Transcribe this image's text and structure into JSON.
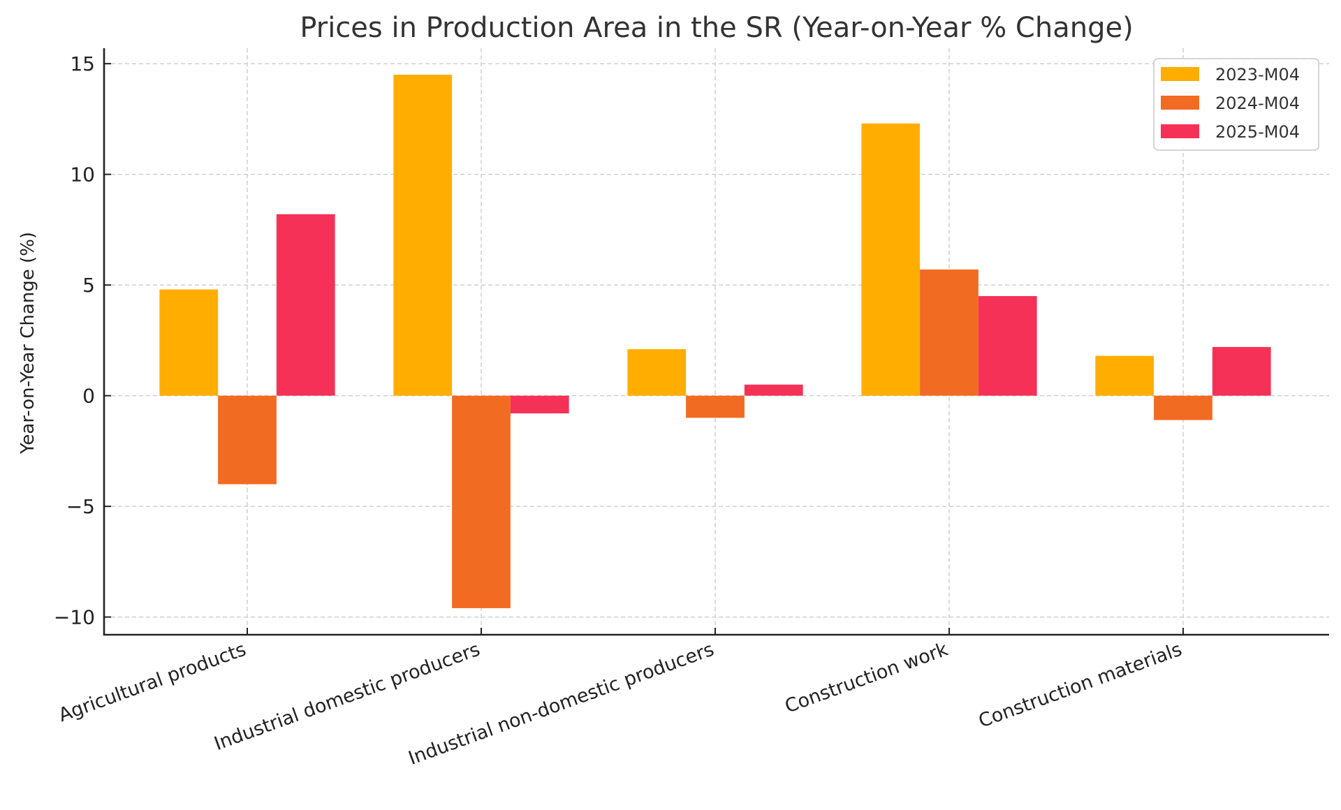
{
  "chart_data": {
    "type": "bar",
    "title": "Prices in Production Area in the SR (Year-on-Year % Change)",
    "xlabel": "",
    "ylabel": "Year-on-Year Change (%)",
    "categories": [
      "Agricultural products",
      "Industrial domestic producers",
      "Industrial non-domestic producers",
      "Construction work",
      "Construction materials"
    ],
    "series": [
      {
        "name": "2023-M04",
        "color": "#FFAE00",
        "values": [
          4.8,
          14.5,
          2.1,
          12.3,
          1.8
        ]
      },
      {
        "name": "2024-M04",
        "color": "#F26B22",
        "values": [
          -4.0,
          -9.6,
          -1.0,
          5.7,
          -1.1
        ]
      },
      {
        "name": "2025-M04",
        "color": "#F53157",
        "values": [
          8.2,
          -0.8,
          0.5,
          4.5,
          2.2
        ]
      }
    ],
    "ylim": [
      -10.8,
      15.7
    ],
    "yticks": [
      -10,
      -5,
      0,
      5,
      10,
      15
    ],
    "ytick_labels": [
      "−10",
      "−5",
      "0",
      "5",
      "10",
      "15"
    ],
    "grid": true,
    "legend_position": "top-right",
    "xtick_rotation": "20 degrees, right-aligned"
  }
}
